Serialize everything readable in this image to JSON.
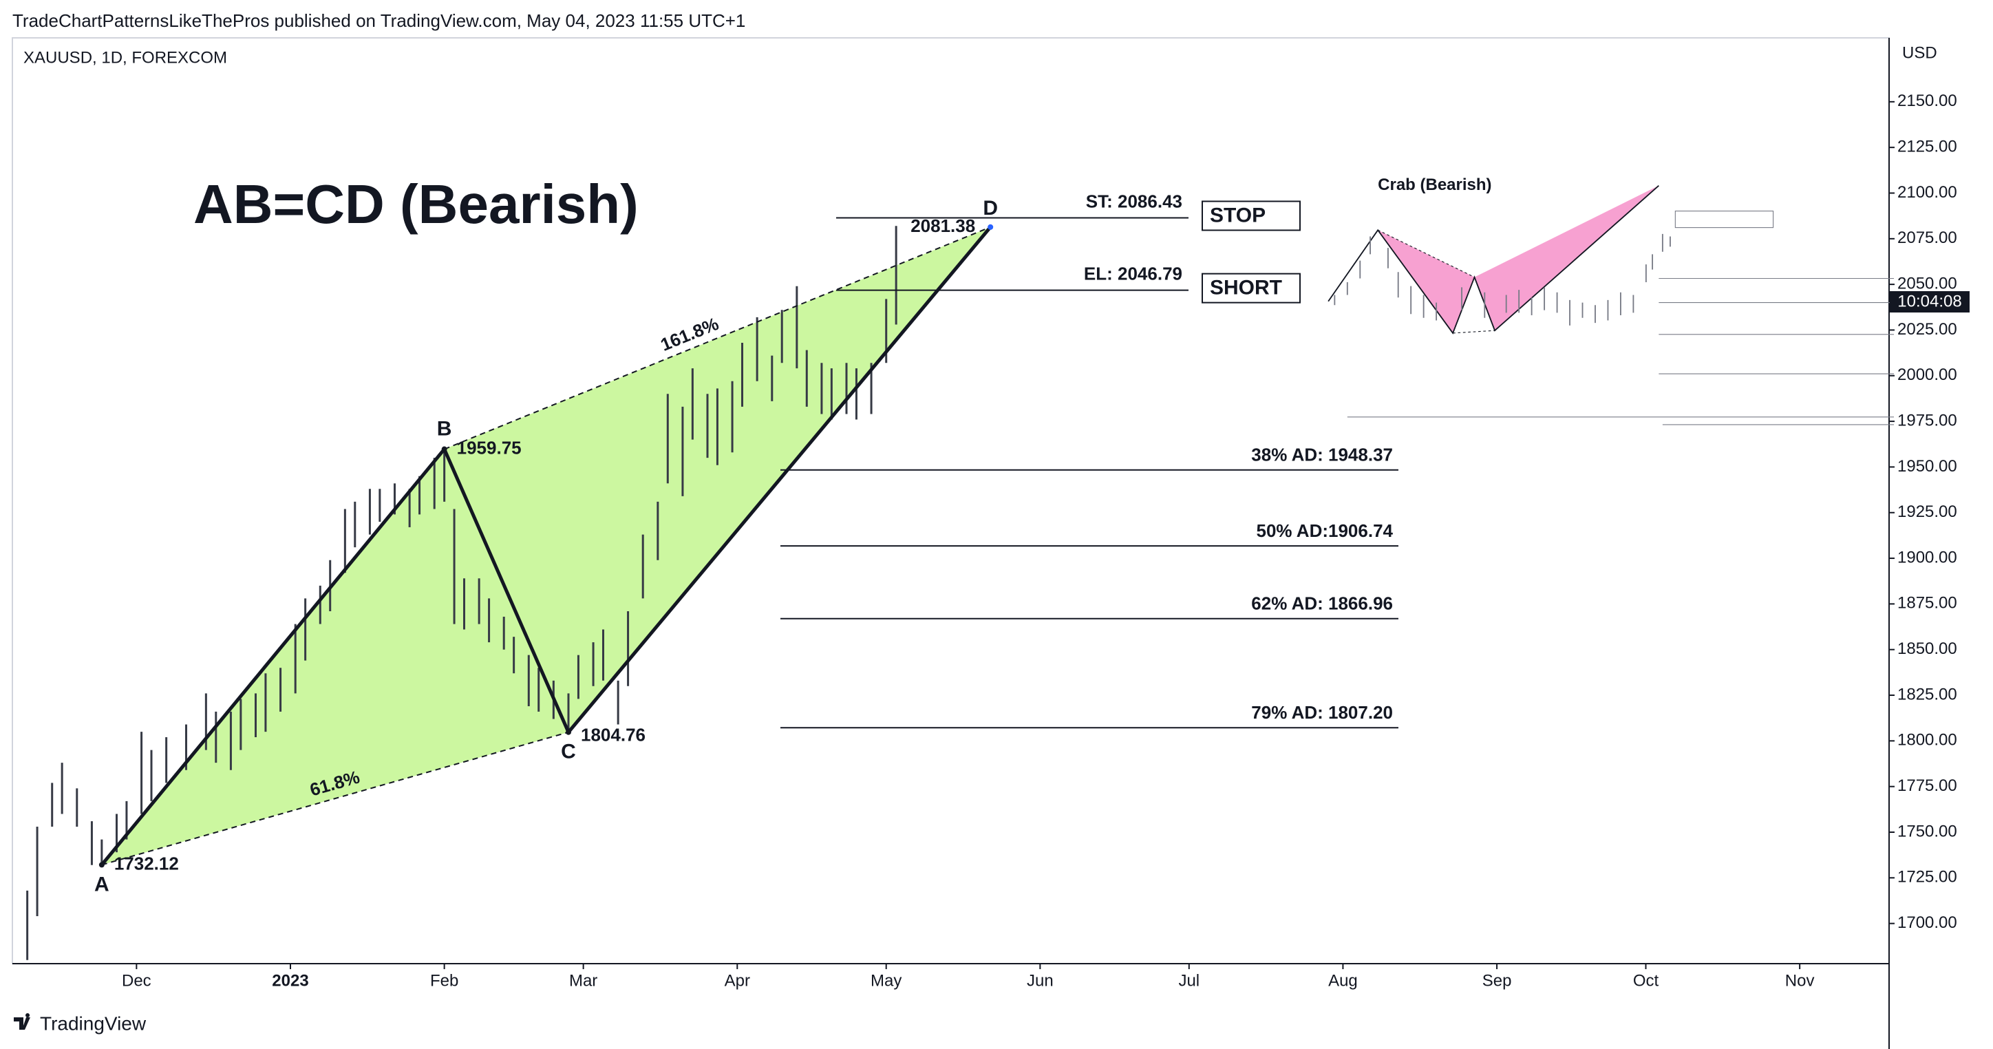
{
  "header": "TradeChartPatternsLikeThePros published on TradingView.com, May 04, 2023 11:55 UTC+1",
  "symbol": "XAUUSD, 1D, FOREXCOM",
  "currency": "USD",
  "countdown": "10:04:08",
  "footer": "TradingView",
  "chart_data": {
    "type": "hilo",
    "title": "AB=CD (Bearish)",
    "x": [
      -53,
      -51,
      -48,
      -46,
      -43,
      -40,
      -38,
      -35,
      -33,
      -30,
      -28,
      -25,
      -21,
      -17,
      -15,
      -12,
      -10,
      -7,
      -5,
      -2,
      1,
      3,
      6,
      8,
      11,
      13,
      16,
      18,
      21,
      24,
      26,
      29,
      31,
      33,
      35,
      38,
      40,
      43,
      45,
      48,
      50,
      53,
      56,
      58,
      61,
      63,
      66,
      68,
      71,
      74,
      76,
      79,
      81,
      84,
      86,
      89,
      91,
      94,
      97,
      99,
      102,
      104,
      107,
      109,
      112,
      114,
      117,
      120,
      122
    ],
    "high": [
      1718,
      1753,
      1777,
      1788,
      1774,
      1756,
      1746,
      1760,
      1767,
      1805,
      1795,
      1802,
      1809,
      1826,
      1816,
      1816,
      1823,
      1826,
      1837,
      1840,
      1864,
      1878,
      1885,
      1899,
      1927,
      1931,
      1938,
      1938,
      1941,
      1938,
      1945,
      1955,
      1960,
      1927,
      1889,
      1889,
      1878,
      1868,
      1857,
      1847,
      1840,
      1833,
      1826,
      1847,
      1854,
      1861,
      1833,
      1871,
      1913,
      1931,
      1990,
      1983,
      2004,
      1990,
      1993,
      1997,
      2018,
      2032,
      2011,
      2036,
      2049,
      2014,
      2007,
      2004,
      2007,
      2004,
      2007,
      2042,
      2082
    ],
    "low": [
      1680,
      1704,
      1753,
      1760,
      1753,
      1732,
      1732,
      1739,
      1746,
      1760,
      1767,
      1777,
      1784,
      1795,
      1788,
      1784,
      1795,
      1802,
      1805,
      1816,
      1826,
      1844,
      1864,
      1871,
      1892,
      1906,
      1913,
      1920,
      1924,
      1917,
      1924,
      1927,
      1931,
      1864,
      1861,
      1864,
      1854,
      1850,
      1837,
      1819,
      1816,
      1812,
      1805,
      1823,
      1830,
      1833,
      1809,
      1830,
      1878,
      1899,
      1941,
      1934,
      1965,
      1955,
      1951,
      1958,
      1983,
      1997,
      1986,
      2007,
      2004,
      1983,
      1979,
      1976,
      1979,
      1976,
      1979,
      2007,
      2028
    ],
    "color": "#363a45",
    "xlim": [
      -56,
      322
    ],
    "ylim": [
      1678,
      2185
    ],
    "xticks": [
      {
        "value": -31,
        "label": "Dec"
      },
      {
        "value": 0,
        "label": "2023"
      },
      {
        "value": 31,
        "label": "Feb"
      },
      {
        "value": 59,
        "label": "Mar"
      },
      {
        "value": 90,
        "label": "Apr"
      },
      {
        "value": 120,
        "label": "May"
      },
      {
        "value": 151,
        "label": "Jun"
      },
      {
        "value": 181,
        "label": "Jul"
      },
      {
        "value": 212,
        "label": "Aug"
      },
      {
        "value": 243,
        "label": "Sep"
      },
      {
        "value": 273,
        "label": "Oct"
      },
      {
        "value": 304,
        "label": "Nov"
      }
    ],
    "yticks": [
      {
        "value": 1700,
        "label": "1700.00"
      },
      {
        "value": 1725,
        "label": "1725.00"
      },
      {
        "value": 1750,
        "label": "1750.00"
      },
      {
        "value": 1775,
        "label": "1775.00"
      },
      {
        "value": 1800,
        "label": "1800.00"
      },
      {
        "value": 1825,
        "label": "1825.00"
      },
      {
        "value": 1850,
        "label": "1850.00"
      },
      {
        "value": 1875,
        "label": "1875.00"
      },
      {
        "value": 1900,
        "label": "1900.00"
      },
      {
        "value": 1925,
        "label": "1925.00"
      },
      {
        "value": 1950,
        "label": "1950.00"
      },
      {
        "value": 1975,
        "label": "1975.00"
      },
      {
        "value": 2000,
        "label": "2000.00"
      },
      {
        "value": 2025,
        "label": "2025.00"
      },
      {
        "value": 2050,
        "label": "2050.00"
      },
      {
        "value": 2075,
        "label": "2075.00"
      },
      {
        "value": 2100,
        "label": "2100.00"
      },
      {
        "value": 2125,
        "label": "2125.00"
      },
      {
        "value": 2150,
        "label": "2150.00"
      }
    ],
    "pattern": {
      "fill": "#ccf7a0",
      "points": [
        {
          "label": "A",
          "x": -38,
          "y": 1732.12
        },
        {
          "label": "B",
          "x": 31,
          "y": 1959.75
        },
        {
          "label": "C",
          "x": 56,
          "y": 1804.76
        },
        {
          "label": "D",
          "x": 141,
          "y": 2081.38
        }
      ],
      "ratios": [
        "61.8%",
        "161.8%"
      ]
    },
    "trade_levels": [
      {
        "label": "ST: 2086.43",
        "value": 2086.43,
        "tag": "STOP"
      },
      {
        "label": "EL: 2046.79",
        "value": 2046.79,
        "tag": "SHORT"
      }
    ],
    "ad_levels": [
      {
        "label": "38% AD: 1948.37",
        "value": 1948.37
      },
      {
        "label": "50% AD:1906.74",
        "value": 1906.74
      },
      {
        "label": "62% AD: 1866.96",
        "value": 1866.96
      },
      {
        "label": "79% AD: 1807.20",
        "value": 1807.2
      }
    ],
    "inset_title": "Crab (Bearish)"
  }
}
